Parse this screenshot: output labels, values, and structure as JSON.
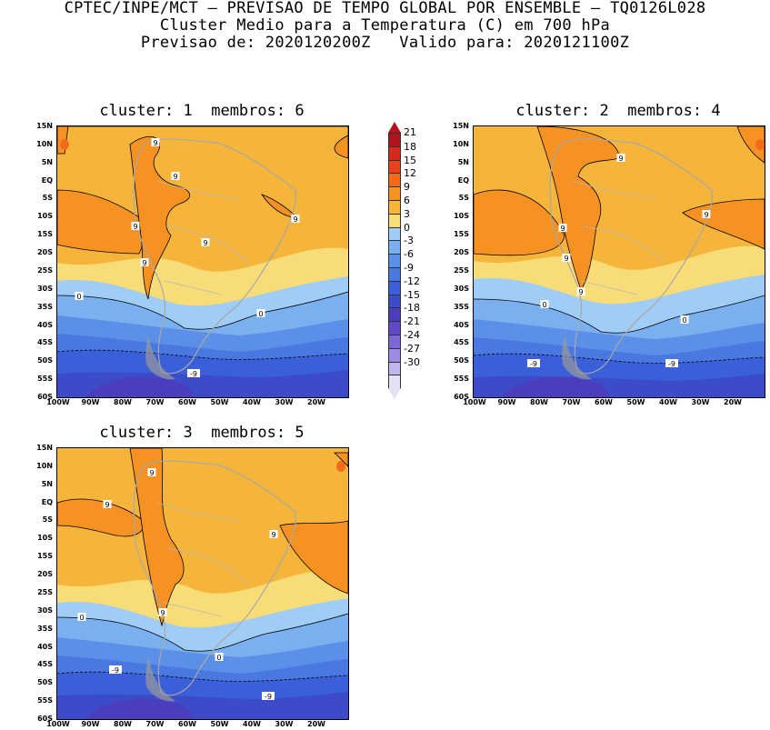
{
  "header": {
    "line1": "CPTEC/INPE/MCT – PREVISAO DE TEMPO GLOBAL POR ENSEMBLE – TQ0126L028",
    "line2": "Cluster Medio para a Temperatura (C) em 700 hPa",
    "line3": "Previsao de: 2020120200Z   Valido para: 2020121100Z"
  },
  "panels": [
    {
      "title": "cluster: 1  membros: 6",
      "contour_labels": [
        "9",
        "9",
        "9",
        "9",
        "9",
        "9",
        "0",
        "0",
        "-9"
      ]
    },
    {
      "title": "cluster: 2  membros: 4",
      "contour_labels": [
        "9",
        "9",
        "9",
        "9",
        "9",
        "0",
        "0",
        "-9",
        "-9"
      ]
    },
    {
      "title": "cluster: 3  membros: 5",
      "contour_labels": [
        "9",
        "9",
        "9",
        "9",
        "0",
        "0",
        "-9",
        "-9"
      ]
    }
  ],
  "lat_labels": [
    "15N",
    "10N",
    "5N",
    "EQ",
    "5S",
    "10S",
    "15S",
    "20S",
    "25S",
    "30S",
    "35S",
    "40S",
    "45S",
    "50S",
    "55S",
    "60S"
  ],
  "lon_labels": [
    "100W",
    "90W",
    "80W",
    "70W",
    "60W",
    "50W",
    "40W",
    "30W",
    "20W"
  ],
  "colorbar": {
    "labels": [
      "21",
      "18",
      "15",
      "12",
      "9",
      "6",
      "3",
      "0",
      "-3",
      "-6",
      "-9",
      "-12",
      "-15",
      "-18",
      "-21",
      "-24",
      "-27",
      "-30"
    ],
    "colors": [
      "#b0141c",
      "#d42a1e",
      "#e8421c",
      "#f26a1a",
      "#f59222",
      "#f5b43a",
      "#f8dc78",
      "#a0cdf5",
      "#7ab0f0",
      "#5c90e8",
      "#4878e0",
      "#3a5fd8",
      "#3c4cc8",
      "#4a3ebd",
      "#6248c8",
      "#7c66d8",
      "#9c8ae4",
      "#c0b6ee",
      "#e4e0f6"
    ]
  }
}
